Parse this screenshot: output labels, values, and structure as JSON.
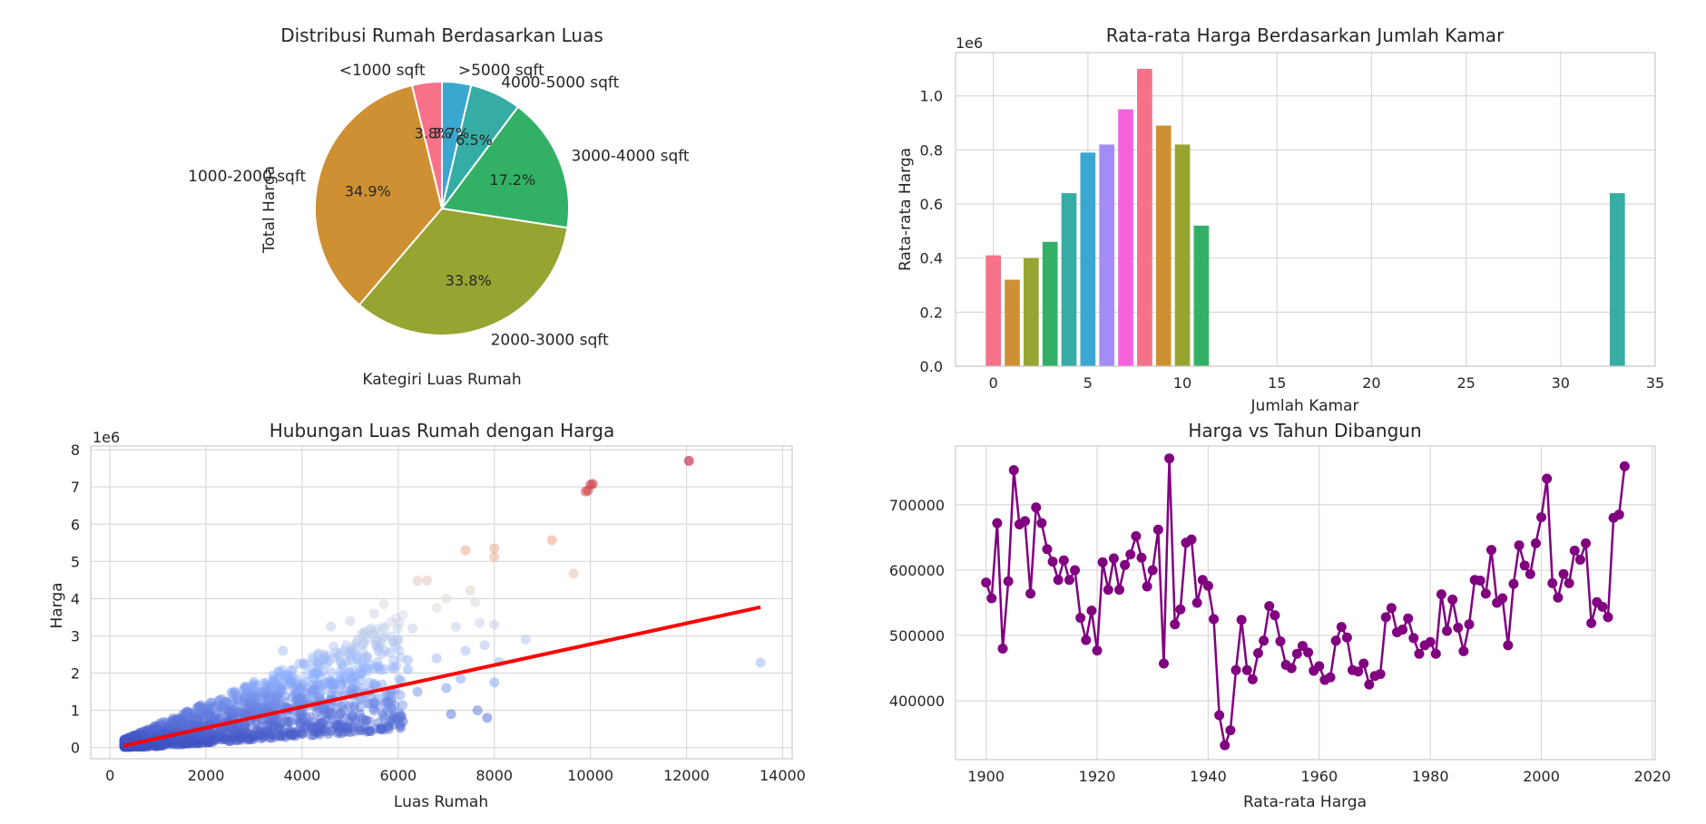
{
  "chart_data": [
    {
      "type": "pie",
      "title": "Distribusi Rumah Berdasarkan Luas",
      "xlabel": "Kategiri Luas Rumah",
      "ylabel": "Total Harga",
      "labels": [
        "<1000 sqft",
        "1000-2000 sqft",
        "2000-3000 sqft",
        "3000-4000 sqft",
        "4000-5000 sqft",
        ">5000 sqft"
      ],
      "values": [
        3.8,
        34.9,
        33.8,
        17.2,
        6.5,
        3.7
      ],
      "pct_labels": [
        "3.8%",
        "34.9%",
        "33.8%",
        "17.2%",
        "6.5%",
        "3.7%"
      ],
      "colors": [
        "#f77189",
        "#ce9032",
        "#97a431",
        "#32b166",
        "#36ada4",
        "#39a7d0"
      ],
      "start_angle": 90,
      "direction": "counterclockwise"
    },
    {
      "type": "bar",
      "title": "Rata-rata Harga Berdasarkan Jumlah Kamar",
      "xlabel": "Jumlah Kamar",
      "ylabel": "Rata-rata Harga",
      "offset_text": "1e6",
      "x": [
        0,
        1,
        2,
        3,
        4,
        5,
        6,
        7,
        8,
        9,
        10,
        11,
        33
      ],
      "values": [
        0.41,
        0.32,
        0.4,
        0.46,
        0.64,
        0.79,
        0.82,
        0.95,
        1.1,
        0.89,
        0.82,
        0.52,
        0.64
      ],
      "colors": [
        "#f77189",
        "#ce9032",
        "#97a431",
        "#32b166",
        "#36ada4",
        "#39a7d0",
        "#a48cf4",
        "#f561dd",
        "#f77189",
        "#ce9032",
        "#97a431",
        "#32b166",
        "#36ada4"
      ],
      "xlim": [
        -2,
        35
      ],
      "ylim": [
        0,
        1.16
      ],
      "xticks": [
        0,
        5,
        10,
        15,
        20,
        25,
        30,
        35
      ],
      "yticks": [
        "0.0",
        "0.2",
        "0.4",
        "0.6",
        "0.8",
        "1.0"
      ],
      "grid": true
    },
    {
      "type": "scatter",
      "title": "Hubungan Luas Rumah dengan Harga",
      "xlabel": "Luas Rumah",
      "ylabel": "Harga",
      "offset_text": "1e6",
      "xlim": [
        -400,
        14200
      ],
      "ylim": [
        -0.3,
        8.1
      ],
      "xticks": [
        0,
        2000,
        4000,
        6000,
        8000,
        10000,
        12000,
        14000
      ],
      "yticks": [
        0,
        1,
        2,
        3,
        4,
        5,
        6,
        7,
        8
      ],
      "colormap": "coolwarm",
      "grid": true,
      "points": [
        [
          12050,
          7.7
        ],
        [
          10000,
          7.06
        ],
        [
          10050,
          7.08
        ],
        [
          9900,
          6.88
        ],
        [
          9950,
          6.9
        ],
        [
          9200,
          5.57
        ],
        [
          7400,
          5.3
        ],
        [
          8000,
          5.35
        ],
        [
          8000,
          5.12
        ],
        [
          9650,
          4.67
        ],
        [
          6400,
          4.48
        ],
        [
          6600,
          4.49
        ],
        [
          7500,
          4.22
        ],
        [
          7000,
          4.0
        ],
        [
          7600,
          3.9
        ],
        [
          6800,
          3.75
        ],
        [
          7700,
          3.35
        ],
        [
          8000,
          3.3
        ],
        [
          7200,
          3.25
        ],
        [
          6300,
          3.2
        ],
        [
          8650,
          2.9
        ],
        [
          7800,
          2.75
        ],
        [
          7400,
          2.6
        ],
        [
          6800,
          2.4
        ],
        [
          8100,
          2.3
        ],
        [
          6200,
          2.35
        ],
        [
          7300,
          1.85
        ],
        [
          8000,
          1.75
        ],
        [
          7000,
          1.6
        ],
        [
          6400,
          1.5
        ],
        [
          7650,
          1.0
        ],
        [
          7850,
          0.8
        ],
        [
          7100,
          0.9
        ],
        [
          13540,
          2.28
        ],
        [
          5700,
          3.85
        ],
        [
          5500,
          3.6
        ],
        [
          5000,
          3.4
        ],
        [
          4600,
          3.25
        ],
        [
          5300,
          3.1
        ],
        [
          6000,
          2.9
        ],
        [
          5600,
          2.7
        ],
        [
          6200,
          2.1
        ],
        [
          5800,
          1.2
        ],
        [
          5200,
          0.9
        ],
        [
          6100,
          0.7
        ],
        [
          4800,
          2.3
        ],
        [
          4300,
          2.0
        ],
        [
          4200,
          0.5
        ],
        [
          3900,
          1.1
        ],
        [
          3600,
          2.6
        ]
      ],
      "regression": {
        "x": [
          290,
          13540
        ],
        "y": [
          0.05,
          3.77
        ],
        "color": "#ff0000"
      }
    },
    {
      "type": "line",
      "title": "Harga vs Tahun Dibangun",
      "xlabel": "Rata-rata Harga",
      "ylabel": "",
      "color": "#800080",
      "xlim": [
        1894.5,
        2020.5
      ],
      "ylim": [
        310000,
        790000
      ],
      "xticks": [
        1900,
        1920,
        1940,
        1960,
        1980,
        2000,
        2020
      ],
      "yticks": [
        400000,
        500000,
        600000,
        700000
      ],
      "x": [
        1900,
        1901,
        1902,
        1903,
        1904,
        1905,
        1906,
        1907,
        1908,
        1909,
        1910,
        1911,
        1912,
        1913,
        1914,
        1915,
        1916,
        1917,
        1918,
        1919,
        1920,
        1921,
        1922,
        1923,
        1924,
        1925,
        1926,
        1927,
        1928,
        1929,
        1930,
        1931,
        1932,
        1933,
        1934,
        1935,
        1936,
        1937,
        1938,
        1939,
        1940,
        1941,
        1942,
        1943,
        1944,
        1945,
        1946,
        1947,
        1948,
        1949,
        1950,
        1951,
        1952,
        1953,
        1954,
        1955,
        1956,
        1957,
        1958,
        1959,
        1960,
        1961,
        1962,
        1963,
        1964,
        1965,
        1966,
        1967,
        1968,
        1969,
        1970,
        1971,
        1972,
        1973,
        1974,
        1975,
        1976,
        1977,
        1978,
        1979,
        1980,
        1981,
        1982,
        1983,
        1984,
        1985,
        1986,
        1987,
        1988,
        1989,
        1990,
        1991,
        1992,
        1993,
        1994,
        1995,
        1996,
        1997,
        1998,
        1999,
        2000,
        2001,
        2002,
        2003,
        2004,
        2005,
        2006,
        2007,
        2008,
        2009,
        2010,
        2011,
        2012,
        2013,
        2014,
        2015
      ],
      "y": [
        581000,
        557000,
        672000,
        480000,
        583000,
        753000,
        670000,
        675000,
        564000,
        696000,
        672000,
        632000,
        613000,
        585000,
        615000,
        585000,
        600000,
        527000,
        493000,
        538000,
        477000,
        612000,
        570000,
        618000,
        570000,
        608000,
        624000,
        652000,
        619000,
        575000,
        600000,
        662000,
        457000,
        771000,
        517000,
        540000,
        642000,
        647000,
        550000,
        585000,
        576000,
        525000,
        378000,
        332000,
        355000,
        447000,
        524000,
        447000,
        433000,
        473000,
        492000,
        545000,
        531000,
        491000,
        455000,
        450000,
        472000,
        484000,
        474000,
        446000,
        453000,
        432000,
        436000,
        492000,
        513000,
        497000,
        447000,
        445000,
        457000,
        425000,
        438000,
        441000,
        528000,
        542000,
        505000,
        509000,
        526000,
        496000,
        472000,
        485000,
        490000,
        472000,
        563000,
        507000,
        555000,
        512000,
        476000,
        517000,
        585000,
        584000,
        564000,
        631000,
        550000,
        557000,
        485000,
        579000,
        638000,
        607000,
        594000,
        641000,
        681000,
        740000,
        580000,
        558000,
        594000,
        580000,
        630000,
        616000,
        641000,
        519000,
        551000,
        544000,
        528000,
        680000,
        685000,
        759000
      ],
      "grid": true
    }
  ]
}
